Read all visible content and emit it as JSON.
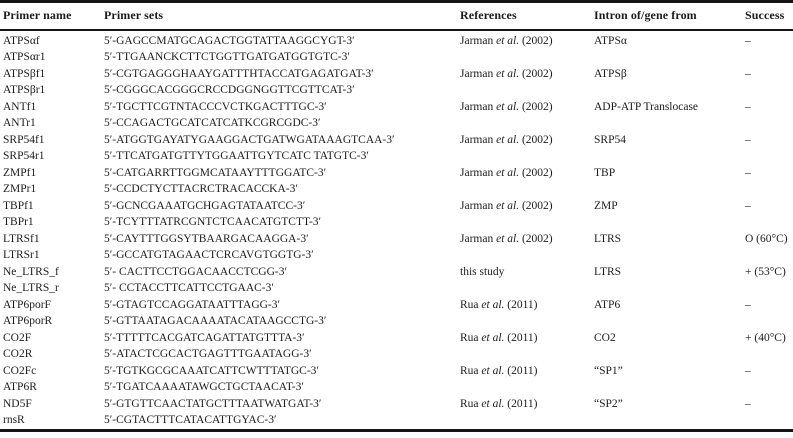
{
  "table": {
    "header": {
      "columns": [
        "Primer name",
        "Primer sets",
        "References",
        "Intron of/gene from",
        "Success"
      ]
    },
    "rows": [
      {
        "name": "ATPSαf",
        "seq": "5′-GAGCCMATGCAGACTGGTATTAAGGCYGT-3′",
        "ref_pre": "Jarman ",
        "ref_em": "et al.",
        "ref_post": " (2002)",
        "gene": "ATPSα",
        "success": "–"
      },
      {
        "name": "ATPSαr1",
        "seq": "5′-TTGAANCKCTTCTGGTTGATGATGGTGTC-3′",
        "ref_pre": "",
        "ref_em": "",
        "ref_post": "",
        "gene": "",
        "success": ""
      },
      {
        "name": "ATPSβf1",
        "seq": "5′-CGTGAGGGHAAYGATTTHTACCATGAGATGAT-3′",
        "ref_pre": "Jarman ",
        "ref_em": "et al.",
        "ref_post": " (2002)",
        "gene": "ATPSβ",
        "success": "–"
      },
      {
        "name": "ATPSβr1",
        "seq": "5′-CGGGCACGGGCRCCDGGNGGTTCGTTCAT-3′",
        "ref_pre": "",
        "ref_em": "",
        "ref_post": "",
        "gene": "",
        "success": ""
      },
      {
        "name": "ANTf1",
        "seq": "5′-TGCTTCGTNTACCCVCTKGACTTTGC-3′",
        "ref_pre": "Jarman ",
        "ref_em": "et al.",
        "ref_post": " (2002)",
        "gene": "ADP-ATP Translocase",
        "success": "–"
      },
      {
        "name": "ANTr1",
        "seq": "5′-CCAGACTGCATCATCATKCGRCGDC-3′",
        "ref_pre": "",
        "ref_em": "",
        "ref_post": "",
        "gene": "",
        "success": ""
      },
      {
        "name": "SRP54f1",
        "seq": "5′-ATGGTGAYATYGAAGGACTGATWGATAAAGTCAA-3′",
        "ref_pre": "Jarman ",
        "ref_em": "et al.",
        "ref_post": " (2002)",
        "gene": "SRP54",
        "success": "–"
      },
      {
        "name": "SRP54r1",
        "seq": "5′-TTCATGATGTTYTGGAATTGYTCATC TATGTC-3′",
        "ref_pre": "",
        "ref_em": "",
        "ref_post": "",
        "gene": "",
        "success": ""
      },
      {
        "name": "ZMPf1",
        "seq": "5′-CATGARRTTGGMCATAAYTTTGGATC-3′",
        "ref_pre": "Jarman ",
        "ref_em": "et al.",
        "ref_post": " (2002)",
        "gene": "TBP",
        "success": "–"
      },
      {
        "name": "ZMPr1",
        "seq": "5′-CCDCTYCTTACRCTRACACCKA-3′",
        "ref_pre": "",
        "ref_em": "",
        "ref_post": "",
        "gene": "",
        "success": ""
      },
      {
        "name": "TBPf1",
        "seq": "5′-GCNCGAAATGCHGAGTATAATCC-3′",
        "ref_pre": "Jarman ",
        "ref_em": "et al.",
        "ref_post": " (2002)",
        "gene": "ZMP",
        "success": "–"
      },
      {
        "name": "TBPr1",
        "seq": "5′-TCYTTTATRCGNTCTCAACATGTCTT-3′",
        "ref_pre": "",
        "ref_em": "",
        "ref_post": "",
        "gene": "",
        "success": ""
      },
      {
        "name": "LTRSf1",
        "seq": "5′-CAYTTTGGSYTBAARGACAAGGA-3′",
        "ref_pre": "Jarman ",
        "ref_em": "et al.",
        "ref_post": " (2002)",
        "gene": "LTRS",
        "success": "O (60°C)"
      },
      {
        "name": "LTRSr1",
        "seq": "5′-GCCATGTAGAACTCRCAVGTGGTG-3′",
        "ref_pre": "",
        "ref_em": "",
        "ref_post": "",
        "gene": "",
        "success": ""
      },
      {
        "name": "Ne_LTRS_f",
        "seq": "5′- CACTTCCTGGACAACCTCGG-3′",
        "ref_pre": "this study",
        "ref_em": "",
        "ref_post": "",
        "gene": "LTRS",
        "success": "+ (53°C)"
      },
      {
        "name": "Ne_LTRS_r",
        "seq": "5′- CCTACCTTCATTCCTGAAC-3′",
        "ref_pre": "",
        "ref_em": "",
        "ref_post": "",
        "gene": "",
        "success": ""
      },
      {
        "name": "ATP6porF",
        "seq": "5′-GTAGTCCAGGATAATTTAGG-3′",
        "ref_pre": "Rua ",
        "ref_em": "et al.",
        "ref_post": " (2011)",
        "gene": "ATP6",
        "success": "–"
      },
      {
        "name": "ATP6porR",
        "seq": "5′-GTTAATAGACAAAATACATAAGCCTG-3′",
        "ref_pre": "",
        "ref_em": "",
        "ref_post": "",
        "gene": "",
        "success": ""
      },
      {
        "name": "CO2F",
        "seq": "5′-TTTTTCACGATCAGATTATGTTTA-3′",
        "ref_pre": "Rua ",
        "ref_em": "et al.",
        "ref_post": " (2011)",
        "gene": "CO2",
        "success": "+ (40°C)"
      },
      {
        "name": "CO2R",
        "seq": "5′-ATACTCGCACTGAGTTTGAATAGG-3′",
        "ref_pre": "",
        "ref_em": "",
        "ref_post": "",
        "gene": "",
        "success": ""
      },
      {
        "name": "CO2Fc",
        "seq": "5′-TGTKGCGCAAATCATTCWTTTATGC-3′",
        "ref_pre": "Rua ",
        "ref_em": "et al.",
        "ref_post": " (2011)",
        "gene": "“SP1”",
        "success": "–"
      },
      {
        "name": "ATP6R",
        "seq": "5′-TGATCAAAATAWGCTGCTAACAT-3′",
        "ref_pre": "",
        "ref_em": "",
        "ref_post": "",
        "gene": "",
        "success": ""
      },
      {
        "name": "ND5F",
        "seq": "5′-GTGTTCAACTATGCTTTAATWATGAT-3′",
        "ref_pre": "Rua ",
        "ref_em": "et al.",
        "ref_post": " (2011)",
        "gene": "“SP2”",
        "success": "–"
      },
      {
        "name": "rnsR",
        "seq": "5′-CGTACTTTCATACATTGYAC-3′",
        "ref_pre": "",
        "ref_em": "",
        "ref_post": "",
        "gene": "",
        "success": ""
      }
    ]
  }
}
